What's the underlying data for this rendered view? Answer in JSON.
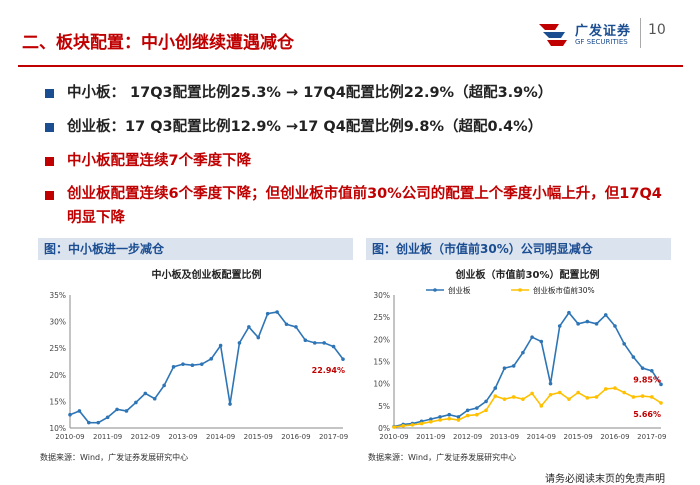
{
  "header": {
    "title": "二、板块配置：中小创继续遭遇减仓",
    "logo_cn": "广发证券",
    "logo_en": "GF SECURITIES",
    "page_number": "10"
  },
  "bullets": [
    {
      "text": "中小板： 17Q3配置比例25.3% → 17Q4配置比例22.9%（超配3.9%）",
      "style": "normal"
    },
    {
      "text": "创业板：17 Q3配置比例12.9% →17 Q4配置比例9.8%（超配0.4%）",
      "style": "normal"
    },
    {
      "text": "中小板配置连续7个季度下降",
      "style": "red"
    },
    {
      "text": "创业板配置连续6个季度下降；但创业板市值前30%公司的配置上个季度小幅上升，但17Q4明显下降",
      "style": "red"
    }
  ],
  "left_panel": {
    "header": "图：中小板进一步减仓",
    "source": "数据来源：Wind，广发证券发展研究中心"
  },
  "right_panel": {
    "header": "图：创业板（市值前30%）公司明显减仓",
    "source": "数据来源：Wind，广发证券发展研究中心"
  },
  "footer": {
    "disclaimer": "请务必阅读末页的免责声明"
  },
  "colors": {
    "accent_red": "#c00000",
    "brand_blue": "#1b4d91",
    "line_blue": "#2e75b6",
    "line_yellow": "#ffc000"
  },
  "chart_data": [
    {
      "type": "line",
      "title": "中小板及创业板配置比例",
      "x_ticks": [
        "2010-09",
        "2011-09",
        "2012-09",
        "2013-09",
        "2014-09",
        "2015-09",
        "2016-09",
        "2017-09"
      ],
      "y_ticks": [
        "10%",
        "15%",
        "20%",
        "25%",
        "30%",
        "35%"
      ],
      "ylim": [
        10,
        35
      ],
      "xlim": [
        0,
        29
      ],
      "series": [
        {
          "values": [
            [
              0,
              12.5
            ],
            [
              1,
              13.2
            ],
            [
              2,
              11.0
            ],
            [
              3,
              11.0
            ],
            [
              4,
              12.0
            ],
            [
              5,
              13.5
            ],
            [
              6,
              13.2
            ],
            [
              7,
              14.8
            ],
            [
              8,
              16.5
            ],
            [
              9,
              15.5
            ],
            [
              10,
              18.0
            ],
            [
              11,
              21.5
            ],
            [
              12,
              22.0
            ],
            [
              13,
              21.8
            ],
            [
              14,
              22.0
            ],
            [
              15,
              23.0
            ],
            [
              16,
              25.5
            ],
            [
              17,
              14.5
            ],
            [
              18,
              26.0
            ],
            [
              19,
              29.0
            ],
            [
              20,
              27.0
            ],
            [
              21,
              31.5
            ],
            [
              22,
              31.8
            ],
            [
              23,
              29.5
            ],
            [
              24,
              29.0
            ],
            [
              25,
              26.5
            ],
            [
              26,
              26.0
            ],
            [
              27,
              26.0
            ],
            [
              28,
              25.3
            ],
            [
              29,
              22.94
            ]
          ]
        }
      ],
      "end_label": "22.94%",
      "grid": false
    },
    {
      "type": "line",
      "title": "创业板（市值前30%）配置比例",
      "x_ticks": [
        "2010-09",
        "2011-09",
        "2012-09",
        "2013-09",
        "2014-09",
        "2015-09",
        "2016-09",
        "2017-09"
      ],
      "y_ticks": [
        "0%",
        "5%",
        "10%",
        "15%",
        "20%",
        "25%",
        "30%"
      ],
      "ylim": [
        0,
        30
      ],
      "xlim": [
        0,
        29
      ],
      "legend_position": "top-left",
      "series": [
        {
          "name": "创业板",
          "color": "#2e75b6",
          "values": [
            [
              0,
              0.3
            ],
            [
              1,
              0.8
            ],
            [
              2,
              1.0
            ],
            [
              3,
              1.5
            ],
            [
              4,
              2.0
            ],
            [
              5,
              2.5
            ],
            [
              6,
              3.0
            ],
            [
              7,
              2.5
            ],
            [
              8,
              4.0
            ],
            [
              9,
              4.5
            ],
            [
              10,
              6.0
            ],
            [
              11,
              9.0
            ],
            [
              12,
              13.5
            ],
            [
              13,
              14.0
            ],
            [
              14,
              17.0
            ],
            [
              15,
              20.5
            ],
            [
              16,
              19.5
            ],
            [
              17,
              10.0
            ],
            [
              18,
              23.0
            ],
            [
              19,
              26.0
            ],
            [
              20,
              23.5
            ],
            [
              21,
              24.0
            ],
            [
              22,
              23.5
            ],
            [
              23,
              25.5
            ],
            [
              24,
              23.0
            ],
            [
              25,
              19.0
            ],
            [
              26,
              16.0
            ],
            [
              27,
              13.5
            ],
            [
              28,
              12.9
            ],
            [
              29,
              9.85
            ]
          ]
        },
        {
          "name": "创业板市值前30%",
          "color": "#ffc000",
          "values": [
            [
              0,
              0.2
            ],
            [
              1,
              0.5
            ],
            [
              2,
              0.7
            ],
            [
              3,
              1.0
            ],
            [
              4,
              1.4
            ],
            [
              5,
              1.8
            ],
            [
              6,
              2.1
            ],
            [
              7,
              1.8
            ],
            [
              8,
              2.8
            ],
            [
              9,
              3.0
            ],
            [
              10,
              4.0
            ],
            [
              11,
              7.2
            ],
            [
              12,
              6.5
            ],
            [
              13,
              7.0
            ],
            [
              14,
              6.5
            ],
            [
              15,
              7.8
            ],
            [
              16,
              5.0
            ],
            [
              17,
              7.5
            ],
            [
              18,
              8.0
            ],
            [
              19,
              6.5
            ],
            [
              20,
              8.0
            ],
            [
              21,
              6.8
            ],
            [
              22,
              7.0
            ],
            [
              23,
              8.8
            ],
            [
              24,
              9.0
            ],
            [
              25,
              8.0
            ],
            [
              26,
              7.0
            ],
            [
              27,
              7.2
            ],
            [
              28,
              7.0
            ],
            [
              29,
              5.66
            ]
          ]
        }
      ],
      "end_labels": [
        "9.85%",
        "5.66%"
      ],
      "grid": false
    }
  ]
}
